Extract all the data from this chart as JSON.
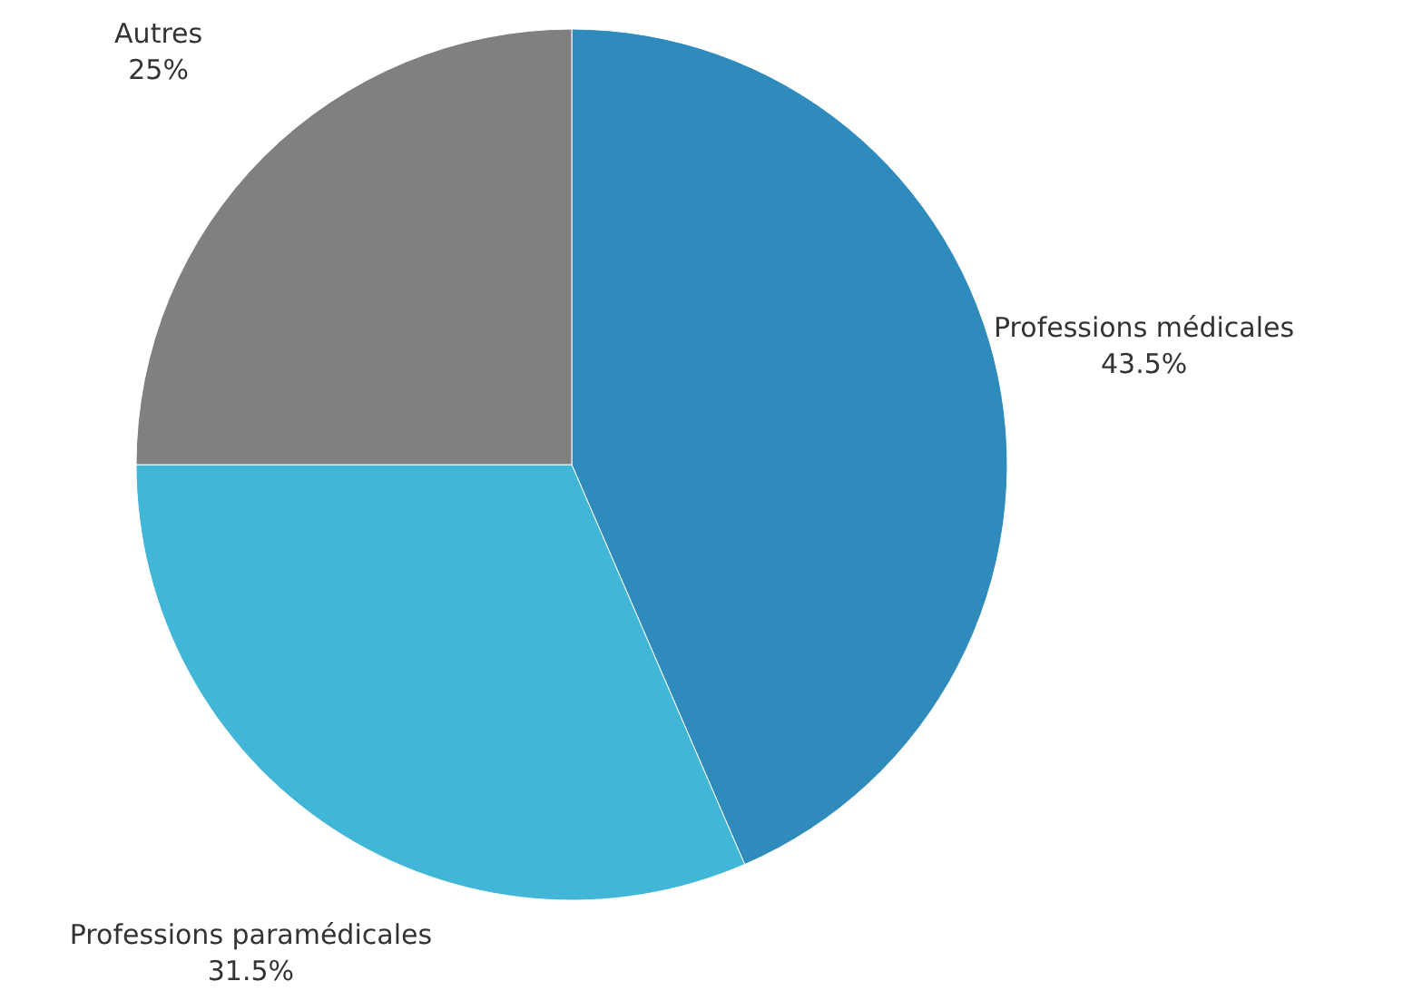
{
  "chart_data": {
    "type": "pie",
    "categories": [
      "Professions médicales",
      "Professions paramédicales",
      "Autres"
    ],
    "values": [
      43.5,
      31.5,
      25
    ],
    "colors": [
      "#2e8bbb",
      "#41b6d6",
      "#808080"
    ],
    "value_labels": [
      "43.5%",
      "31.5%",
      "25%"
    ]
  }
}
